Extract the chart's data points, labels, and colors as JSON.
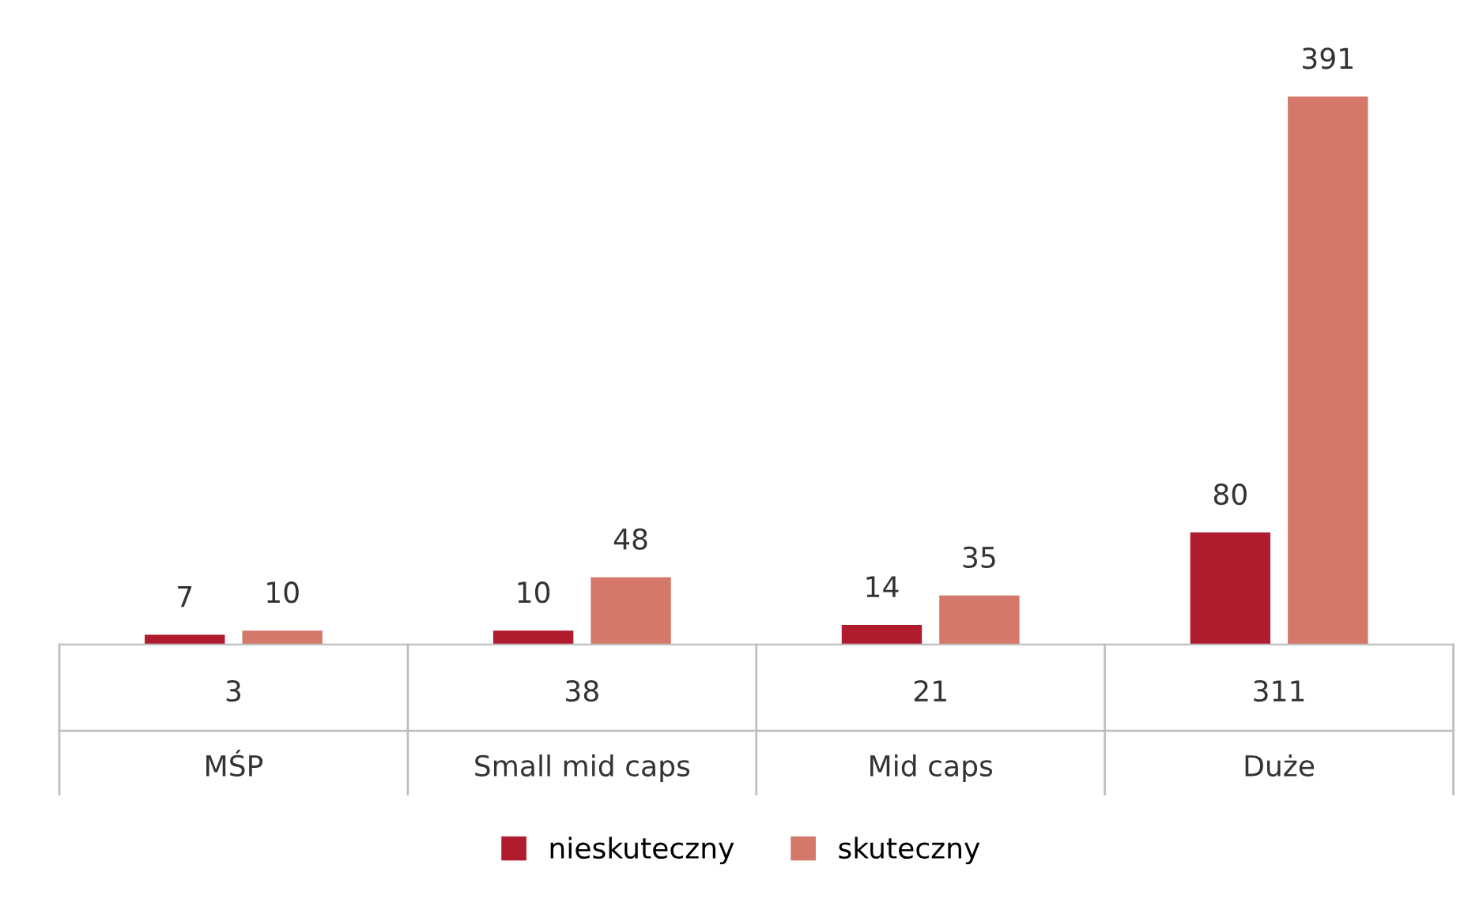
{
  "chart_data": {
    "type": "bar",
    "categories": [
      "3\nMŚP",
      "38\nSmall mid caps",
      "21\nMid caps",
      "311\nDuże"
    ],
    "series": [
      {
        "name": "nieskuteczny",
        "color": "#b01c2e",
        "values": [
          7,
          10,
          14,
          80
        ]
      },
      {
        "name": "skuteczny",
        "color": "#d4786a",
        "values": [
          10,
          48,
          35,
          391
        ]
      }
    ],
    "data_labels": true,
    "legend": "bottom"
  }
}
